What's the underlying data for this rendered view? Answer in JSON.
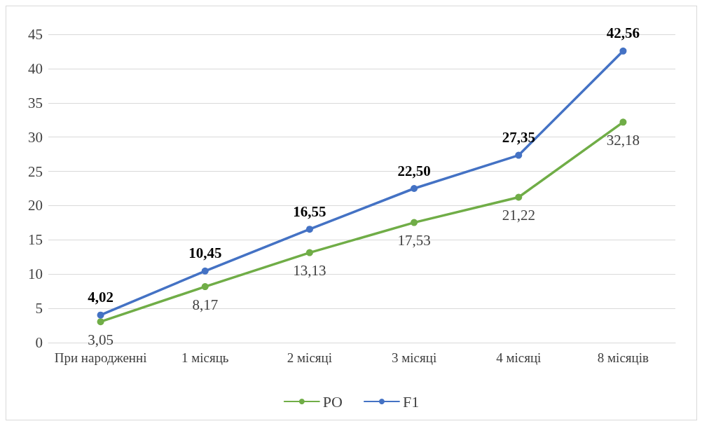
{
  "chart_data": {
    "type": "line",
    "categories": [
      "При народженні",
      "1 місяць",
      "2 місяці",
      "3 місяці",
      "4 місяці",
      "8 місяців"
    ],
    "series": [
      {
        "name": "PO",
        "color": "#70ad47",
        "values": [
          3.05,
          8.17,
          13.13,
          17.53,
          21.22,
          32.18
        ],
        "value_labels": [
          "3,05",
          "8,17",
          "13,13",
          "17,53",
          "21,22",
          "32,18"
        ]
      },
      {
        "name": "F1",
        "color": "#4472c4",
        "values": [
          4.02,
          10.45,
          16.55,
          22.5,
          27.35,
          42.56
        ],
        "value_labels": [
          "4,02",
          "10,45",
          "16,55",
          "22,50",
          "27,35",
          "42,56"
        ]
      }
    ],
    "ylim": [
      0,
      45
    ],
    "yticks": [
      0,
      5,
      10,
      15,
      20,
      25,
      30,
      35,
      40,
      45
    ],
    "grid": "y",
    "legend": "bottom",
    "marker": "circle",
    "line_style": "solid"
  }
}
